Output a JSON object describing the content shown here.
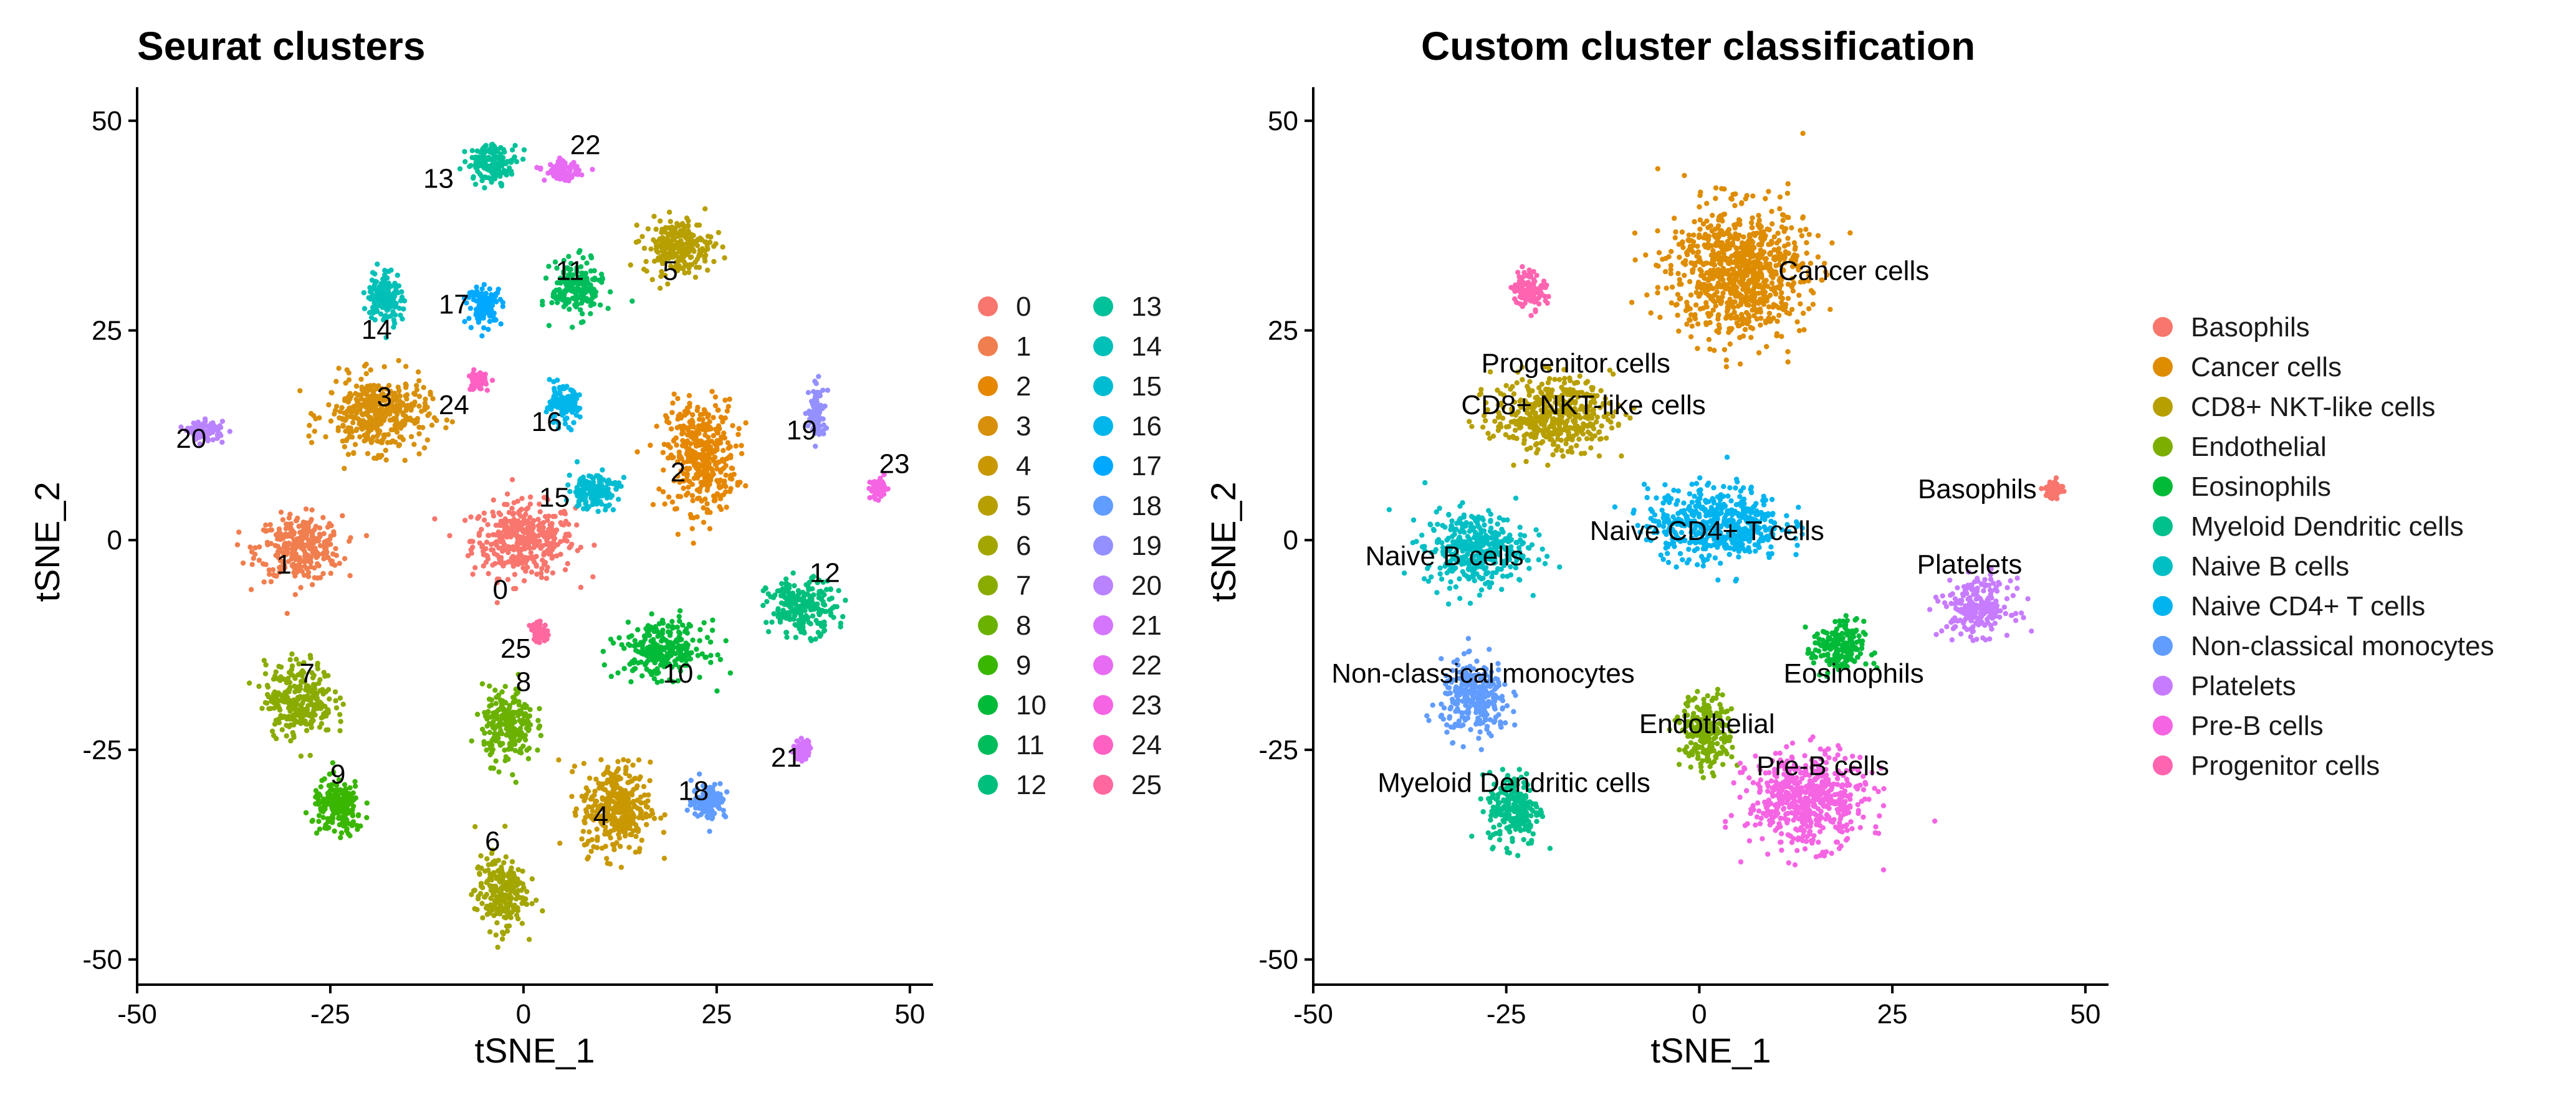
{
  "figure": {
    "panels": [
      {
        "title": "Seurat clusters"
      },
      {
        "title": "Custom cluster classification"
      }
    ]
  },
  "chart_data": [
    {
      "type": "scatter",
      "title": "Seurat clusters",
      "xlabel": "tSNE_1",
      "ylabel": "tSNE_2",
      "xlim": [
        -50,
        53
      ],
      "ylim": [
        -53,
        54
      ],
      "xticks": [
        "-50",
        "-25",
        "0",
        "25",
        "50"
      ],
      "yticks": [
        "-50",
        "-25",
        "0",
        "25",
        "50"
      ],
      "xtick_values": [
        -50,
        -25,
        0,
        25,
        50
      ],
      "ytick_values": [
        -50,
        -25,
        0,
        25,
        50
      ],
      "grid": false,
      "legend_position": "right",
      "legend_columns": 2,
      "series": [
        {
          "name": "0",
          "color": "#F8766D",
          "cx": 0,
          "cy": 0,
          "label": {
            "text": "0",
            "x": -3,
            "y": -7
          }
        },
        {
          "name": "1",
          "color": "#F07E4E",
          "cx": -29,
          "cy": -1,
          "label": {
            "text": "1",
            "x": -31,
            "y": -4
          }
        },
        {
          "name": "2",
          "color": "#E58700",
          "cx": 23,
          "cy": 10,
          "label": {
            "text": "2",
            "x": 20,
            "y": 7
          }
        },
        {
          "name": "3",
          "color": "#D8900A",
          "cx": -19,
          "cy": 15,
          "label": {
            "text": "3",
            "x": -18,
            "y": 16
          }
        },
        {
          "name": "4",
          "color": "#C99800",
          "cx": 12,
          "cy": -32,
          "label": {
            "text": "4",
            "x": 10,
            "y": -34
          }
        },
        {
          "name": "5",
          "color": "#B79F00",
          "cx": 20,
          "cy": 35,
          "label": {
            "text": "5",
            "x": 19,
            "y": 31
          }
        },
        {
          "name": "6",
          "color": "#A3A500",
          "cx": -3,
          "cy": -42,
          "label": {
            "text": "6",
            "x": -4,
            "y": -37
          }
        },
        {
          "name": "7",
          "color": "#8AAB00",
          "cx": -29,
          "cy": -19,
          "label": {
            "text": "7",
            "x": -28,
            "y": -17
          }
        },
        {
          "name": "8",
          "color": "#6BB100",
          "cx": -2,
          "cy": -22,
          "label": {
            "text": "8",
            "x": 0,
            "y": -18
          }
        },
        {
          "name": "9",
          "color": "#39B600",
          "cx": -24,
          "cy": -32,
          "label": {
            "text": "9",
            "x": -24,
            "y": -29
          }
        },
        {
          "name": "10",
          "color": "#00BA38",
          "cx": 18,
          "cy": -13,
          "label": {
            "text": "10",
            "x": 20,
            "y": -17
          }
        },
        {
          "name": "11",
          "color": "#00BD5C",
          "cx": 7,
          "cy": 30,
          "label": {
            "text": "11",
            "x": 6,
            "y": 31
          }
        },
        {
          "name": "12",
          "color": "#00BF7D",
          "cx": 36,
          "cy": -8,
          "label": {
            "text": "12",
            "x": 39,
            "y": -5
          }
        },
        {
          "name": "13",
          "color": "#00C19A",
          "cx": -4,
          "cy": 45,
          "label": {
            "text": "13",
            "x": -11,
            "y": 42
          }
        },
        {
          "name": "14",
          "color": "#00C0B7",
          "cx": -18,
          "cy": 29,
          "label": {
            "text": "14",
            "x": -19,
            "y": 24
          }
        },
        {
          "name": "15",
          "color": "#00BCD2",
          "cx": 9,
          "cy": 6,
          "label": {
            "text": "15",
            "x": 4,
            "y": 4
          }
        },
        {
          "name": "16",
          "color": "#00B6EB",
          "cx": 5,
          "cy": 16,
          "label": {
            "text": "16",
            "x": 3,
            "y": 13
          }
        },
        {
          "name": "17",
          "color": "#00A9FF",
          "cx": -5,
          "cy": 28,
          "label": {
            "text": "17",
            "x": -9,
            "y": 27
          }
        },
        {
          "name": "18",
          "color": "#619CFF",
          "cx": 24,
          "cy": -31,
          "label": {
            "text": "18",
            "x": 22,
            "y": -31
          }
        },
        {
          "name": "19",
          "color": "#9590FF",
          "cx": 38,
          "cy": 15,
          "label": {
            "text": "19",
            "x": 36,
            "y": 12
          }
        },
        {
          "name": "20",
          "color": "#B983FF",
          "cx": -41,
          "cy": 13,
          "label": {
            "text": "20",
            "x": -43,
            "y": 11
          }
        },
        {
          "name": "21",
          "color": "#D575FE",
          "cx": 36,
          "cy": -25,
          "label": {
            "text": "21",
            "x": 34,
            "y": -27
          }
        },
        {
          "name": "22",
          "color": "#E76BF3",
          "cx": 5,
          "cy": 44,
          "label": {
            "text": "22",
            "x": 8,
            "y": 46
          }
        },
        {
          "name": "23",
          "color": "#F564E3",
          "cx": 46,
          "cy": 6,
          "label": {
            "text": "23",
            "x": 48,
            "y": 8
          }
        },
        {
          "name": "24",
          "color": "#FF61C3",
          "cx": -6,
          "cy": 19,
          "label": {
            "text": "24",
            "x": -9,
            "y": 15
          }
        },
        {
          "name": "25",
          "color": "#FF689F",
          "cx": 2,
          "cy": -11,
          "label": {
            "text": "25",
            "x": -1,
            "y": -14
          }
        }
      ]
    },
    {
      "type": "scatter",
      "title": "Custom cluster classification",
      "xlabel": "tSNE_1",
      "ylabel": "tSNE_2",
      "xlim": [
        -50,
        53
      ],
      "ylim": [
        -53,
        54
      ],
      "xticks": [
        "-50",
        "-25",
        "0",
        "25",
        "50"
      ],
      "yticks": [
        "-50",
        "-25",
        "0",
        "25",
        "50"
      ],
      "xtick_values": [
        -50,
        -25,
        0,
        25,
        50
      ],
      "ytick_values": [
        -50,
        -25,
        0,
        25,
        50
      ],
      "grid": false,
      "legend_position": "right",
      "legend_columns": 1,
      "series": [
        {
          "name": "Basophils",
          "color": "#F8766D",
          "cx": 46,
          "cy": 6,
          "label": {
            "text": "Basophils",
            "x": 36,
            "y": 5
          }
        },
        {
          "name": "Cancer cells",
          "color": "#DE8C00",
          "cx": 5,
          "cy": 32,
          "label": {
            "text": "Cancer cells",
            "x": 20,
            "y": 31
          }
        },
        {
          "name": "CD8+ NKT-like cells",
          "color": "#B79F00",
          "cx": -19,
          "cy": 15,
          "label": {
            "text": "CD8+ NKT-like cells",
            "x": -15,
            "y": 15
          }
        },
        {
          "name": "Endothelial",
          "color": "#7CAE00",
          "cx": 1,
          "cy": -23,
          "label": {
            "text": "Endothelial",
            "x": 1,
            "y": -23
          }
        },
        {
          "name": "Eosinophils",
          "color": "#00BA38",
          "cx": 18,
          "cy": -13,
          "label": {
            "text": "Eosinophils",
            "x": 20,
            "y": -17
          }
        },
        {
          "name": "Myeloid Dendritic cells",
          "color": "#00C08B",
          "cx": -24,
          "cy": -32,
          "label": {
            "text": "Myeloid Dendritic cells",
            "x": -24,
            "y": -30
          }
        },
        {
          "name": "Naive B cells",
          "color": "#00BFC4",
          "cx": -29,
          "cy": -1,
          "label": {
            "text": "Naive B cells",
            "x": -33,
            "y": -3
          }
        },
        {
          "name": "Naive CD4+ T cells",
          "color": "#00B4F0",
          "cx": 2,
          "cy": 2,
          "label": {
            "text": "Naive CD4+ T cells",
            "x": 1,
            "y": 0
          }
        },
        {
          "name": "Non-classical monocytes",
          "color": "#619CFF",
          "cx": -29,
          "cy": -19,
          "label": {
            "text": "Non-classical monocytes",
            "x": -28,
            "y": -17
          }
        },
        {
          "name": "Platelets",
          "color": "#C77CFF",
          "cx": 36,
          "cy": -8,
          "label": {
            "text": "Platelets",
            "x": 35,
            "y": -4
          }
        },
        {
          "name": "Pre-B cells",
          "color": "#F564E3",
          "cx": 14,
          "cy": -31,
          "label": {
            "text": "Pre-B cells",
            "x": 16,
            "y": -28
          }
        },
        {
          "name": "Progenitor cells",
          "color": "#FF64B0",
          "cx": -22,
          "cy": 30,
          "label": {
            "text": "Progenitor cells",
            "x": -16,
            "y": 20
          }
        }
      ]
    }
  ]
}
